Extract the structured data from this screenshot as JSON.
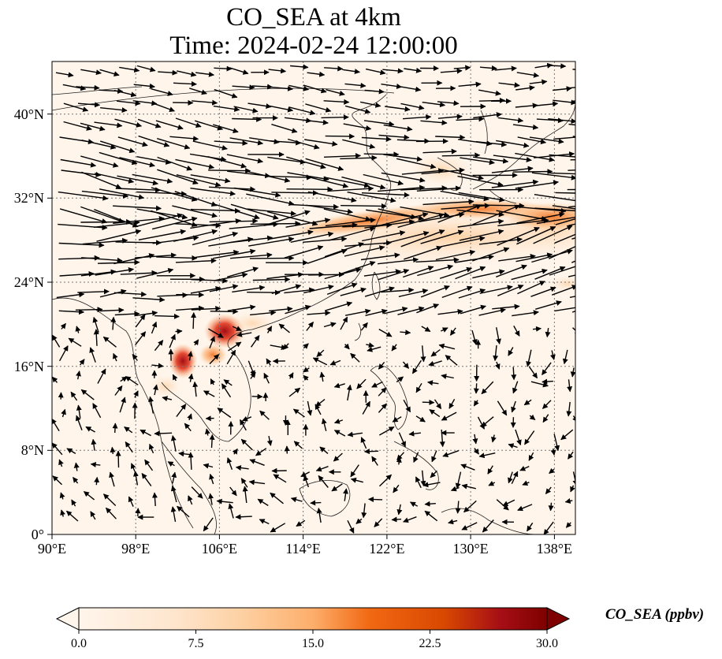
{
  "title_line1": "CO_SEA at 4km",
  "title_line2": "Time: 2024-02-24 12:00:00",
  "map": {
    "lon_range": [
      90,
      140
    ],
    "lat_range": [
      0,
      45
    ],
    "lon_ticks": [
      "90°E",
      "98°E",
      "106°E",
      "114°E",
      "122°E",
      "130°E",
      "138°E"
    ],
    "lat_ticks": [
      "0°",
      "8°N",
      "16°N",
      "24°N",
      "32°N",
      "40°N"
    ],
    "gridlines": "dotted",
    "background": "#fff5eb",
    "features": [
      "coastlines",
      "country borders",
      "wind vectors"
    ],
    "hotspots": [
      {
        "lon": 105.5,
        "lat": 19.0,
        "intensity": "high"
      },
      {
        "lon": 102.5,
        "lat": 16.5,
        "intensity": "high"
      },
      {
        "lon": 125.0,
        "lat": 30.5,
        "intensity": "medium"
      },
      {
        "lon": 133.0,
        "lat": 30.5,
        "intensity": "medium"
      }
    ]
  },
  "colorbar": {
    "title": "CO_SEA (ppbv)",
    "ticks": [
      "0.0",
      "7.5",
      "15.0",
      "22.5",
      "30.0"
    ],
    "min": 0,
    "max": 30,
    "colormap": [
      "#fff5eb",
      "#fdd0a2",
      "#fdae6b",
      "#f16913",
      "#d94801",
      "#a50f15",
      "#7f0000"
    ]
  }
}
